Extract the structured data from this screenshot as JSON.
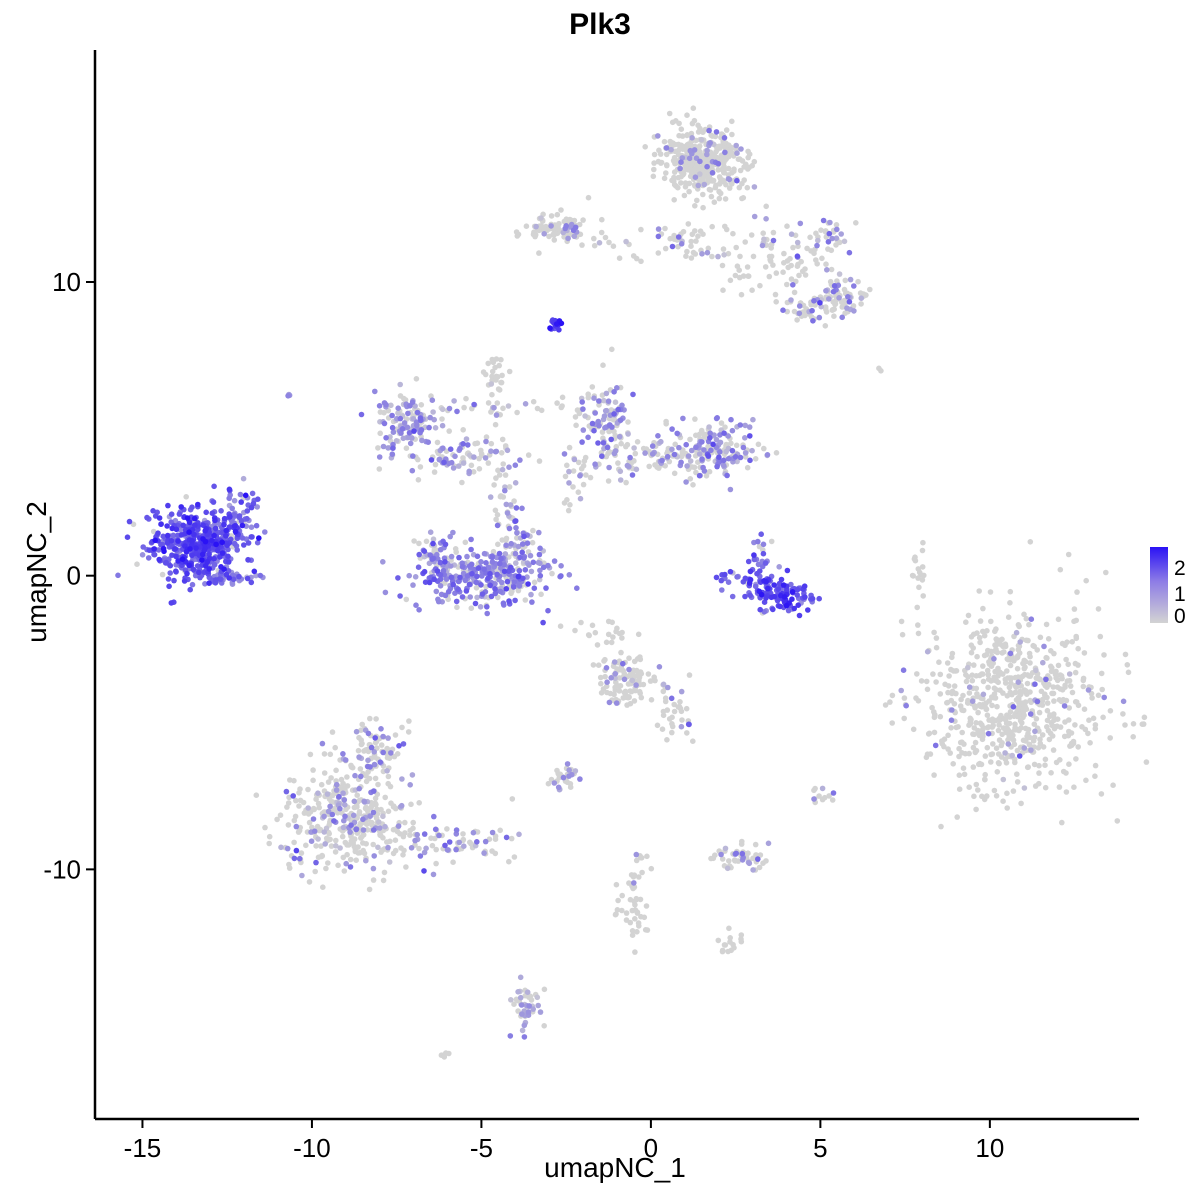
{
  "chart_data": {
    "type": "scatter",
    "title": "Plk3",
    "xlabel": "umapNC_1",
    "ylabel": "umapNC_2",
    "xlim": [
      -16.4,
      14.4
    ],
    "ylim": [
      -18.5,
      17.9
    ],
    "x_ticks": [
      -15,
      -10,
      -5,
      0,
      5,
      10
    ],
    "x_tick_labels": [
      "-15",
      "-10",
      "-5",
      "0",
      "5",
      "10"
    ],
    "y_ticks": [
      -10,
      0,
      10
    ],
    "y_tick_labels": [
      "-10",
      "0",
      "10"
    ],
    "grid": false,
    "color_scale": {
      "low": "#d3d3d3",
      "high": "#2a12f5",
      "min": 0,
      "max": 2.3
    },
    "legend": {
      "position": "right",
      "ticks": [
        2,
        1,
        0
      ],
      "tick_labels": [
        "2",
        "1",
        "0"
      ]
    },
    "clusters": [
      {
        "cx": -13.3,
        "cy": 1.1,
        "sx": 0.75,
        "sy": 0.6,
        "n": 520,
        "expr_mean": 1.45,
        "expr_frac": 0.95
      },
      {
        "cx": -12.1,
        "cy": 2.2,
        "sx": 0.3,
        "sy": 0.5,
        "n": 40,
        "expr_mean": 1.1,
        "expr_frac": 0.9
      },
      {
        "cx": -12.4,
        "cy": -0.05,
        "sx": 0.4,
        "sy": 0.1,
        "n": 35,
        "expr_mean": 0.95,
        "expr_frac": 0.9
      },
      {
        "cx": -4.9,
        "cy": -0.1,
        "sx": 1.0,
        "sy": 0.45,
        "n": 300,
        "expr_mean": 0.95,
        "expr_frac": 0.75
      },
      {
        "cx": -3.9,
        "cy": 1.0,
        "sx": 0.35,
        "sy": 0.6,
        "n": 60,
        "expr_mean": 0.9,
        "expr_frac": 0.7
      },
      {
        "cx": -6.4,
        "cy": 0.6,
        "sx": 0.35,
        "sy": 0.5,
        "n": 50,
        "expr_mean": 0.9,
        "expr_frac": 0.7
      },
      {
        "cx": -7.1,
        "cy": 5.2,
        "sx": 0.55,
        "sy": 0.55,
        "n": 130,
        "expr_mean": 0.75,
        "expr_frac": 0.6
      },
      {
        "cx": -5.5,
        "cy": 4.1,
        "sx": 0.9,
        "sy": 0.35,
        "n": 90,
        "expr_mean": 0.7,
        "expr_frac": 0.45
      },
      {
        "cx": -4.5,
        "cy": 5.7,
        "sx": 1.0,
        "sy": 0.25,
        "n": 30,
        "expr_mean": 0.6,
        "expr_frac": 0.3
      },
      {
        "cx": -4.3,
        "cy": 2.6,
        "sx": 0.2,
        "sy": 0.5,
        "n": 25,
        "expr_mean": 0.6,
        "expr_frac": 0.3
      },
      {
        "cx": -4.7,
        "cy": 6.8,
        "sx": 0.15,
        "sy": 0.45,
        "n": 25,
        "expr_mean": 0.5,
        "expr_frac": 0.1
      },
      {
        "cx": -1.3,
        "cy": 5.2,
        "sx": 0.4,
        "sy": 0.7,
        "n": 120,
        "expr_mean": 0.75,
        "expr_frac": 0.55
      },
      {
        "cx": 1.9,
        "cy": 4.3,
        "sx": 0.7,
        "sy": 0.45,
        "n": 160,
        "expr_mean": 0.8,
        "expr_frac": 0.55
      },
      {
        "cx": 0.2,
        "cy": 4.0,
        "sx": 0.8,
        "sy": 0.35,
        "n": 80,
        "expr_mean": 0.6,
        "expr_frac": 0.35
      },
      {
        "cx": -2.2,
        "cy": 3.4,
        "sx": 0.2,
        "sy": 0.5,
        "n": 25,
        "expr_mean": 0.6,
        "expr_frac": 0.3
      },
      {
        "cx": -2.8,
        "cy": 8.6,
        "sx": 0.1,
        "sy": 0.1,
        "n": 15,
        "expr_mean": 1.8,
        "expr_frac": 1.0
      },
      {
        "cx": -10.7,
        "cy": 6.1,
        "sx": 0.05,
        "sy": 0.05,
        "n": 3,
        "expr_mean": 0.8,
        "expr_frac": 0.5
      },
      {
        "cx": 1.5,
        "cy": 14.1,
        "sx": 0.6,
        "sy": 0.55,
        "n": 420,
        "expr_mean": 0.7,
        "expr_frac": 0.1
      },
      {
        "cx": -2.7,
        "cy": 11.8,
        "sx": 0.45,
        "sy": 0.25,
        "n": 90,
        "expr_mean": 0.7,
        "expr_frac": 0.15
      },
      {
        "cx": 0.5,
        "cy": 11.3,
        "sx": 1.5,
        "sy": 0.35,
        "n": 70,
        "expr_mean": 0.7,
        "expr_frac": 0.2
      },
      {
        "cx": 3.8,
        "cy": 10.6,
        "sx": 0.8,
        "sy": 0.8,
        "n": 80,
        "expr_mean": 0.7,
        "expr_frac": 0.2
      },
      {
        "cx": 5.6,
        "cy": 9.5,
        "sx": 0.35,
        "sy": 0.4,
        "n": 70,
        "expr_mean": 0.8,
        "expr_frac": 0.3
      },
      {
        "cx": 4.6,
        "cy": 9.0,
        "sx": 0.3,
        "sy": 0.25,
        "n": 30,
        "expr_mean": 0.7,
        "expr_frac": 0.2
      },
      {
        "cx": 5.3,
        "cy": 11.6,
        "sx": 0.3,
        "sy": 0.3,
        "n": 25,
        "expr_mean": 0.8,
        "expr_frac": 0.4
      },
      {
        "cx": 3.9,
        "cy": -0.7,
        "sx": 0.45,
        "sy": 0.3,
        "n": 110,
        "expr_mean": 1.5,
        "expr_frac": 0.95
      },
      {
        "cx": 2.8,
        "cy": -0.2,
        "sx": 0.4,
        "sy": 0.25,
        "n": 40,
        "expr_mean": 1.3,
        "expr_frac": 0.95
      },
      {
        "cx": 3.2,
        "cy": 0.7,
        "sx": 0.15,
        "sy": 0.35,
        "n": 20,
        "expr_mean": 1.2,
        "expr_frac": 0.9
      },
      {
        "cx": 7.9,
        "cy": 0.3,
        "sx": 0.1,
        "sy": 0.5,
        "n": 15,
        "expr_mean": 0.5,
        "expr_frac": 0.0
      },
      {
        "cx": 10.7,
        "cy": -4.4,
        "sx": 1.35,
        "sy": 1.55,
        "n": 700,
        "expr_mean": 0.7,
        "expr_frac": 0.04
      },
      {
        "cx": -0.8,
        "cy": -3.6,
        "sx": 0.45,
        "sy": 0.45,
        "n": 110,
        "expr_mean": 0.7,
        "expr_frac": 0.15
      },
      {
        "cx": 0.7,
        "cy": -4.6,
        "sx": 0.3,
        "sy": 0.5,
        "n": 35,
        "expr_mean": 0.7,
        "expr_frac": 0.15
      },
      {
        "cx": -9.0,
        "cy": -8.3,
        "sx": 0.95,
        "sy": 0.9,
        "n": 360,
        "expr_mean": 0.75,
        "expr_frac": 0.25
      },
      {
        "cx": -8.2,
        "cy": -6.0,
        "sx": 0.45,
        "sy": 0.5,
        "n": 90,
        "expr_mean": 0.75,
        "expr_frac": 0.3
      },
      {
        "cx": -6.0,
        "cy": -9.1,
        "sx": 1.0,
        "sy": 0.35,
        "n": 80,
        "expr_mean": 0.8,
        "expr_frac": 0.35
      },
      {
        "cx": -3.7,
        "cy": -14.6,
        "sx": 0.2,
        "sy": 0.4,
        "n": 45,
        "expr_mean": 0.55,
        "expr_frac": 0.5
      },
      {
        "cx": -2.6,
        "cy": -6.9,
        "sx": 0.25,
        "sy": 0.25,
        "n": 30,
        "expr_mean": 0.8,
        "expr_frac": 0.35
      },
      {
        "cx": 2.6,
        "cy": -9.6,
        "sx": 0.45,
        "sy": 0.2,
        "n": 50,
        "expr_mean": 0.7,
        "expr_frac": 0.2
      },
      {
        "cx": -0.5,
        "cy": -11.0,
        "sx": 0.3,
        "sy": 0.8,
        "n": 50,
        "expr_mean": 0.6,
        "expr_frac": 0.1
      },
      {
        "cx": 2.4,
        "cy": -12.5,
        "sx": 0.2,
        "sy": 0.2,
        "n": 15,
        "expr_mean": 0.6,
        "expr_frac": 0.1
      },
      {
        "cx": 5.0,
        "cy": -7.5,
        "sx": 0.15,
        "sy": 0.2,
        "n": 12,
        "expr_mean": 0.7,
        "expr_frac": 0.3
      },
      {
        "cx": -1.6,
        "cy": -2.0,
        "sx": 0.5,
        "sy": 0.2,
        "n": 20,
        "expr_mean": 0.5,
        "expr_frac": 0.05
      },
      {
        "cx": -6.1,
        "cy": -16.3,
        "sx": 0.08,
        "sy": 0.05,
        "n": 5,
        "expr_mean": 0.5,
        "expr_frac": 0.0
      },
      {
        "cx": 6.7,
        "cy": 7.0,
        "sx": 0.05,
        "sy": 0.05,
        "n": 2,
        "expr_mean": 0.5,
        "expr_frac": 0.0
      }
    ]
  }
}
